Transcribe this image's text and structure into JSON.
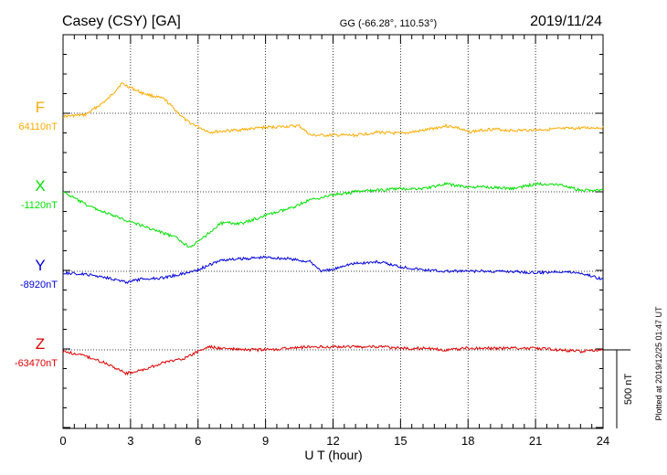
{
  "header": {
    "station": "Casey (CSY)  [GA]",
    "coords": "GG (-66.28°, 110.53°)",
    "date": "2019/11/24"
  },
  "side_note": "Plotted at 2019/12/25 01:47 UT",
  "chart_data": {
    "type": "line",
    "title": "Casey (CSY)  [GA]",
    "xlabel": "U T (hour)",
    "xlim": [
      0,
      24
    ],
    "xticks": [
      0,
      3,
      6,
      9,
      12,
      15,
      18,
      21,
      24
    ],
    "grid": true,
    "scale_bar": {
      "value": 500,
      "label": "500 nT"
    },
    "series": [
      {
        "name": "F",
        "baseline_label": "64110nT",
        "baseline": 64110,
        "color": "#ffaa00",
        "points": [
          [
            0,
            64090
          ],
          [
            1,
            64100
          ],
          [
            2,
            64200
          ],
          [
            2.6,
            64300
          ],
          [
            3.5,
            64240
          ],
          [
            4.5,
            64200
          ],
          [
            5.5,
            64060
          ],
          [
            6.5,
            63990
          ],
          [
            7.5,
            64000
          ],
          [
            9,
            64020
          ],
          [
            10.5,
            64030
          ],
          [
            11,
            63970
          ],
          [
            12,
            63970
          ],
          [
            13,
            63970
          ],
          [
            14,
            63990
          ],
          [
            15,
            63980
          ],
          [
            16,
            64000
          ],
          [
            17,
            64030
          ],
          [
            17.5,
            64020
          ],
          [
            18,
            63990
          ],
          [
            19,
            64010
          ],
          [
            20,
            64000
          ],
          [
            22,
            64010
          ],
          [
            24,
            64020
          ]
        ]
      },
      {
        "name": "X",
        "baseline_label": "-1120nT",
        "baseline": -1120,
        "color": "#00e000",
        "points": [
          [
            0,
            -1120
          ],
          [
            1,
            -1200
          ],
          [
            2,
            -1260
          ],
          [
            3,
            -1310
          ],
          [
            4,
            -1360
          ],
          [
            5,
            -1410
          ],
          [
            5.6,
            -1470
          ],
          [
            6,
            -1440
          ],
          [
            6.5,
            -1380
          ],
          [
            7,
            -1320
          ],
          [
            8,
            -1320
          ],
          [
            9,
            -1270
          ],
          [
            10,
            -1230
          ],
          [
            11,
            -1170
          ],
          [
            12,
            -1140
          ],
          [
            13,
            -1120
          ],
          [
            14,
            -1110
          ],
          [
            15,
            -1100
          ],
          [
            16,
            -1100
          ],
          [
            17,
            -1070
          ],
          [
            18,
            -1090
          ],
          [
            19,
            -1090
          ],
          [
            20,
            -1100
          ],
          [
            21,
            -1070
          ],
          [
            22,
            -1070
          ],
          [
            23,
            -1110
          ],
          [
            24,
            -1110
          ]
        ]
      },
      {
        "name": "Y",
        "baseline_label": "-8920nT",
        "baseline": -8920,
        "color": "#0000dd",
        "points": [
          [
            0,
            -8930
          ],
          [
            1,
            -8940
          ],
          [
            2,
            -8960
          ],
          [
            2.8,
            -8990
          ],
          [
            3.5,
            -8970
          ],
          [
            4.5,
            -8960
          ],
          [
            5.5,
            -8930
          ],
          [
            6,
            -8910
          ],
          [
            6.5,
            -8880
          ],
          [
            7,
            -8850
          ],
          [
            8,
            -8840
          ],
          [
            9,
            -8830
          ],
          [
            10,
            -8840
          ],
          [
            11,
            -8860
          ],
          [
            11.5,
            -8920
          ],
          [
            12,
            -8910
          ],
          [
            12.5,
            -8880
          ],
          [
            13,
            -8870
          ],
          [
            14,
            -8860
          ],
          [
            15,
            -8890
          ],
          [
            16,
            -8910
          ],
          [
            17,
            -8920
          ],
          [
            18,
            -8920
          ],
          [
            19,
            -8920
          ],
          [
            20,
            -8920
          ],
          [
            21,
            -8930
          ],
          [
            22,
            -8920
          ],
          [
            23,
            -8930
          ],
          [
            24,
            -8970
          ]
        ]
      },
      {
        "name": "Z",
        "baseline_label": "-63470nT",
        "baseline": -63470,
        "color": "#dd0000",
        "points": [
          [
            0,
            -63480
          ],
          [
            1,
            -63510
          ],
          [
            2,
            -63560
          ],
          [
            2.8,
            -63620
          ],
          [
            3.5,
            -63600
          ],
          [
            4.5,
            -63550
          ],
          [
            5.5,
            -63520
          ],
          [
            6,
            -63480
          ],
          [
            6.5,
            -63450
          ],
          [
            7,
            -63460
          ],
          [
            8,
            -63470
          ],
          [
            9,
            -63470
          ],
          [
            10,
            -63460
          ],
          [
            11,
            -63450
          ],
          [
            12,
            -63450
          ],
          [
            13,
            -63450
          ],
          [
            14,
            -63450
          ],
          [
            15,
            -63460
          ],
          [
            16,
            -63460
          ],
          [
            17,
            -63470
          ],
          [
            18,
            -63460
          ],
          [
            19,
            -63460
          ],
          [
            20,
            -63460
          ],
          [
            21,
            -63460
          ],
          [
            22,
            -63470
          ],
          [
            23,
            -63480
          ],
          [
            24,
            -63470
          ]
        ]
      }
    ]
  }
}
